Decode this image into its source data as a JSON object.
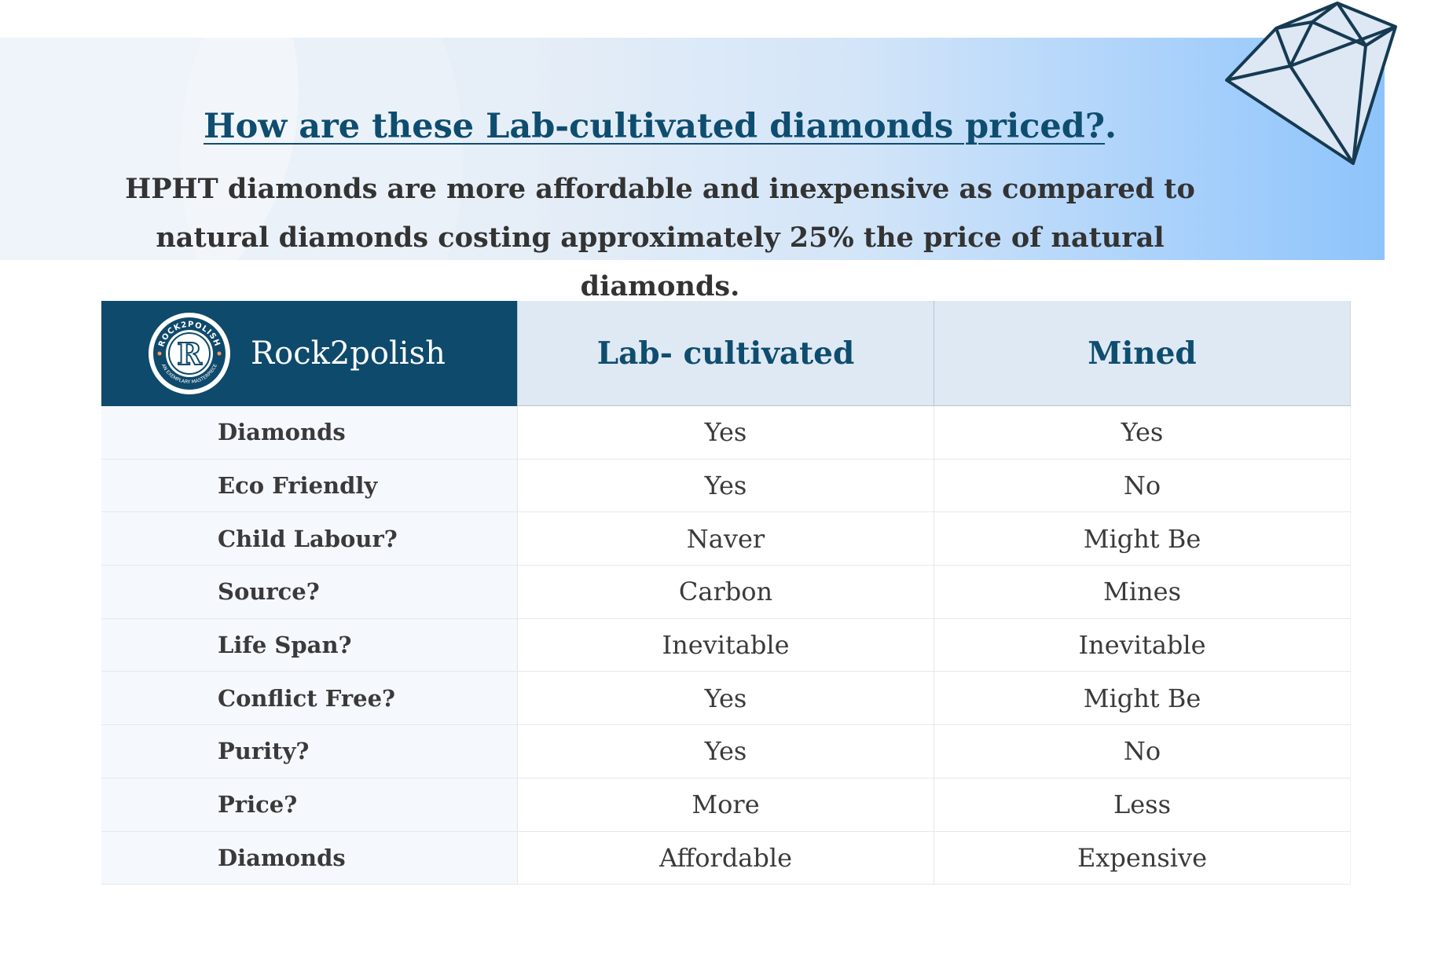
{
  "banner": {
    "title": "How are these Lab-cultivated diamonds priced?",
    "title_suffix": ".",
    "body": "HPHT diamonds are more affordable and inexpensive as compared to natural diamonds costing approximately 25% the price of natural diamonds."
  },
  "logo": {
    "ring_text_top": "ROCK2POLISH",
    "ring_text_bottom": "AN EXEMPLARY MASTERPIECE",
    "monogram": "R"
  },
  "table": {
    "brand": "Rock2polish",
    "columns": [
      "Lab- cultivated",
      "Mined"
    ],
    "rows": [
      {
        "label": "Diamonds",
        "lab": "Yes",
        "mined": "Yes"
      },
      {
        "label": "Eco Friendly",
        "lab": "Yes",
        "mined": "No"
      },
      {
        "label": "Child Labour?",
        "lab": "Naver",
        "mined": "Might Be"
      },
      {
        "label": "Source?",
        "lab": "Carbon",
        "mined": "Mines"
      },
      {
        "label": "Life Span?",
        "lab": "Inevitable",
        "mined": "Inevitable"
      },
      {
        "label": "Conflict Free?",
        "lab": "Yes",
        "mined": "Might Be"
      },
      {
        "label": "Purity?",
        "lab": "Yes",
        "mined": "No"
      },
      {
        "label": "Price?",
        "lab": "More",
        "mined": "Less"
      },
      {
        "label": "Diamonds",
        "lab": "Affordable",
        "mined": "Expensive"
      }
    ]
  },
  "colors": {
    "brand_navy": "#0e4a6c",
    "title_blue": "#0e4d6f",
    "header_bg": "#dfe9f4"
  }
}
